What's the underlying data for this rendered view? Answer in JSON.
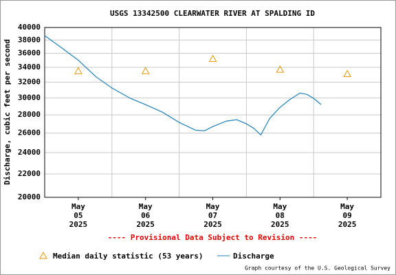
{
  "chart_data": {
    "type": "line",
    "title": "USGS 13342500 CLEARWATER RIVER AT SPALDING ID",
    "y_label": "Discharge, cubic feet per second",
    "x_labels": [
      [
        "May",
        "05",
        "2025"
      ],
      [
        "May",
        "06",
        "2025"
      ],
      [
        "May",
        "07",
        "2025"
      ],
      [
        "May",
        "08",
        "2025"
      ],
      [
        "May",
        "09",
        "2025"
      ]
    ],
    "xticks": [
      0.5,
      1.5,
      2.5,
      3.5,
      4.5
    ],
    "xgrid": [
      1,
      2,
      3,
      4
    ],
    "xlim": [
      0,
      5
    ],
    "ylim": [
      20000,
      40000
    ],
    "log_y": true,
    "yticks": [
      20000,
      22000,
      24000,
      26000,
      28000,
      30000,
      32000,
      34000,
      36000,
      38000,
      40000
    ],
    "grid": true,
    "annotation": "---- Provisional Data Subject to Revision ----",
    "credit": "Graph courtesy of the U.S. Geological Survey",
    "series": [
      {
        "name": "Median daily statistic (53 years)",
        "kind": "marker",
        "color": "#e69500",
        "x": [
          0.5,
          1.5,
          2.5,
          3.5,
          4.5
        ],
        "values": [
          33500,
          33500,
          35200,
          33700,
          33100
        ]
      },
      {
        "name": "Discharge",
        "kind": "line",
        "color": "#1f7fb4",
        "x": [
          0,
          0.255,
          0.5,
          0.765,
          1.0,
          1.276,
          1.5,
          1.755,
          2.0,
          2.245,
          2.378,
          2.5,
          2.704,
          2.857,
          3.0,
          3.112,
          3.214,
          3.347,
          3.49,
          3.643,
          3.796,
          3.898,
          4.0,
          4.112
        ],
        "values": [
          38700,
          36800,
          35000,
          32700,
          31250,
          29950,
          29200,
          28300,
          27150,
          26300,
          26250,
          26700,
          27300,
          27450,
          27000,
          26500,
          25800,
          27600,
          28800,
          29800,
          30600,
          30450,
          29950,
          29200
        ]
      }
    ]
  }
}
